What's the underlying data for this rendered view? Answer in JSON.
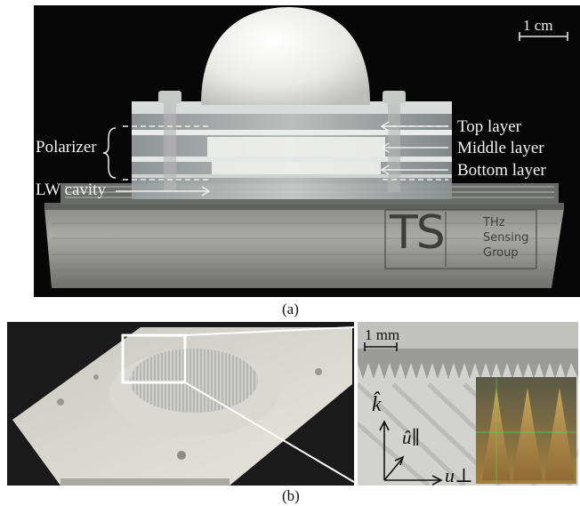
{
  "panel_a": {
    "scale_bar": "1 cm",
    "labels": {
      "polarizer": "Polarizer",
      "lw_cavity": "LW cavity",
      "top_layer": "Top layer",
      "middle_layer": "Middle layer",
      "bottom_layer": "Bottom layer"
    },
    "logo": {
      "letters": "TS",
      "lines": [
        "THz",
        "Sensing",
        "Group"
      ]
    },
    "caption": "(a)"
  },
  "panel_b": {
    "scale_bar": "1 mm",
    "axes": {
      "k": "k̂",
      "u_parallel": "û∥",
      "u_perp": "u⊥"
    },
    "caption": "(b)"
  }
}
